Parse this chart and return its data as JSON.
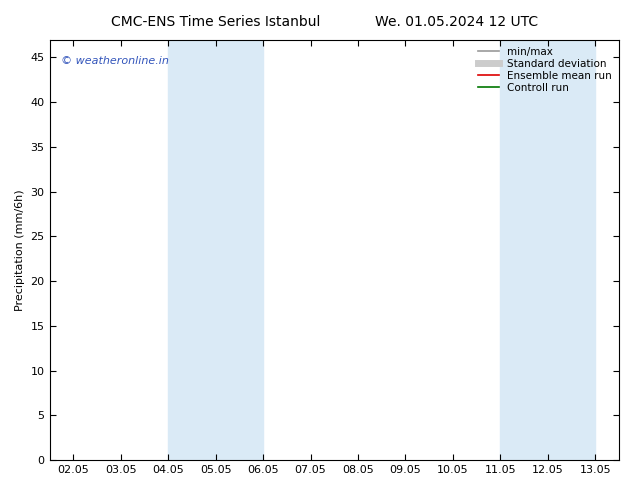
{
  "title_left": "CMC-ENS Time Series Istanbul",
  "title_right": "We. 01.05.2024 12 UTC",
  "ylabel": "Precipitation (mm/6h)",
  "ylim": [
    0,
    47
  ],
  "yticks": [
    0,
    5,
    10,
    15,
    20,
    25,
    30,
    35,
    40,
    45
  ],
  "xtick_labels": [
    "02.05",
    "03.05",
    "04.05",
    "05.05",
    "06.05",
    "07.05",
    "08.05",
    "09.05",
    "10.05",
    "11.05",
    "12.05",
    "13.05"
  ],
  "shaded_bands": [
    {
      "xstart": 2,
      "xend": 4,
      "color": "#daeaf6"
    },
    {
      "xstart": 9,
      "xend": 11,
      "color": "#daeaf6"
    }
  ],
  "watermark": "© weatheronline.in",
  "watermark_color": "#3355bb",
  "legend_items": [
    {
      "label": "min/max",
      "color": "#999999",
      "lw": 1.2,
      "ls": "-"
    },
    {
      "label": "Standard deviation",
      "color": "#cccccc",
      "lw": 5,
      "ls": "-"
    },
    {
      "label": "Ensemble mean run",
      "color": "#dd0000",
      "lw": 1.2,
      "ls": "-"
    },
    {
      "label": "Controll run",
      "color": "#007700",
      "lw": 1.2,
      "ls": "-"
    }
  ],
  "background_color": "#ffffff",
  "plot_bg_color": "#ffffff",
  "spine_color": "#000000",
  "title_fontsize": 10,
  "axis_fontsize": 8,
  "tick_fontsize": 8
}
